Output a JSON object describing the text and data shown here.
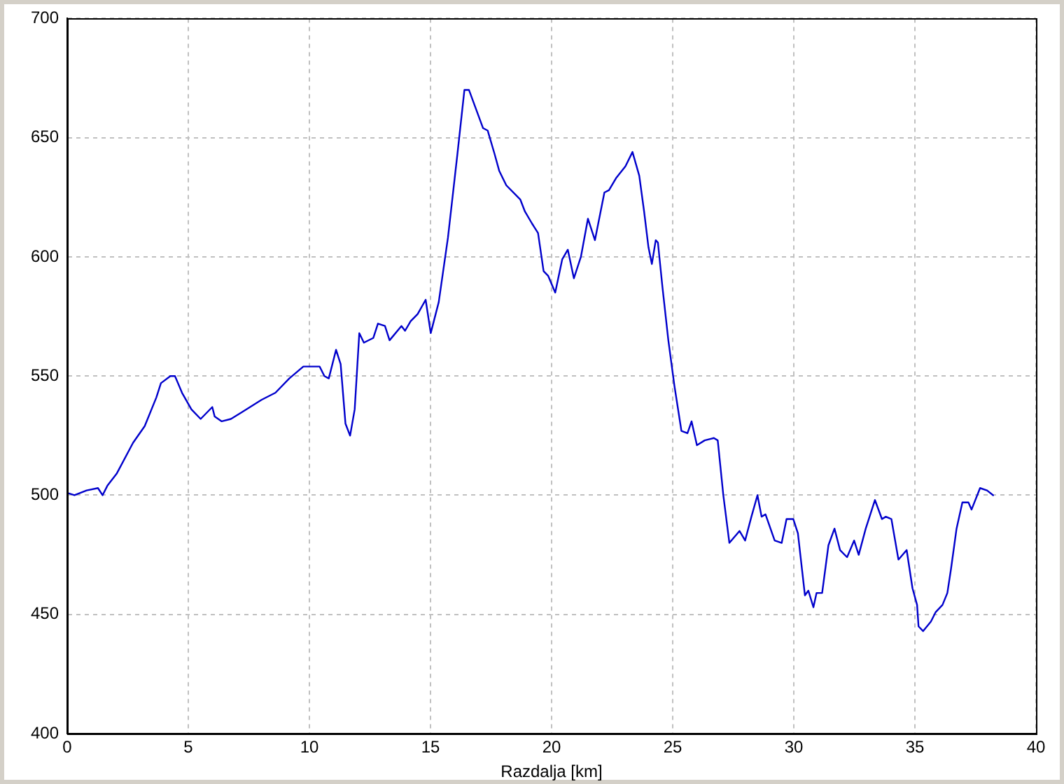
{
  "chart_data": {
    "type": "line",
    "xlabel": "Razdalja [km]",
    "x": [
      0,
      0.3,
      0.8,
      1.27,
      1.46,
      1.66,
      2.04,
      2.72,
      3.2,
      3.68,
      3.87,
      4.26,
      4.45,
      4.74,
      5.13,
      5.51,
      5.99,
      6.09,
      6.38,
      6.76,
      7.24,
      8.02,
      8.6,
      9.17,
      9.75,
      10.42,
      10.62,
      10.8,
      11.1,
      11.29,
      11.49,
      11.68,
      11.87,
      12.06,
      12.25,
      12.64,
      12.83,
      13.12,
      13.31,
      13.8,
      13.95,
      14.18,
      14.47,
      14.8,
      15.01,
      15.34,
      15.72,
      16.11,
      16.4,
      16.59,
      16.88,
      17.17,
      17.36,
      17.65,
      17.84,
      18.13,
      18.71,
      18.9,
      19.19,
      19.44,
      19.67,
      19.86,
      20.15,
      20.44,
      20.67,
      20.92,
      21.21,
      21.5,
      21.79,
      22.18,
      22.37,
      22.66,
      23.05,
      23.34,
      23.62,
      23.82,
      24.0,
      24.14,
      24.3,
      24.39,
      24.58,
      24.82,
      25.07,
      25.36,
      25.61,
      25.78,
      26.0,
      26.32,
      26.7,
      26.86,
      27.09,
      27.34,
      27.76,
      27.99,
      28.25,
      28.5,
      28.67,
      28.83,
      29.21,
      29.5,
      29.7,
      29.98,
      30.17,
      30.46,
      30.6,
      30.81,
      30.94,
      31.17,
      31.43,
      31.68,
      31.91,
      32.2,
      32.49,
      32.68,
      32.97,
      33.35,
      33.64,
      33.8,
      34.03,
      34.32,
      34.66,
      34.9,
      35.09,
      35.15,
      35.34,
      35.66,
      35.86,
      36.14,
      36.34,
      36.49,
      36.72,
      36.96,
      37.21,
      37.34,
      37.69,
      37.98,
      38.23
    ],
    "series": [
      {
        "color": "#0000cc",
        "values": [
          501,
          500,
          502,
          503,
          500,
          504,
          509,
          522,
          529,
          541,
          547,
          550,
          550,
          543,
          536,
          532,
          537,
          533,
          531,
          532,
          535,
          540,
          543,
          549,
          554,
          554,
          550,
          549,
          561,
          555,
          530,
          525,
          536,
          568,
          564,
          566,
          572,
          571,
          565,
          571,
          569,
          573,
          576,
          582,
          568,
          581,
          608,
          643,
          670,
          670,
          662,
          654,
          653,
          643,
          636,
          630,
          624,
          619,
          614,
          610,
          594,
          592,
          585,
          599,
          603,
          591,
          600,
          616,
          607,
          627,
          628,
          633,
          638,
          644,
          634,
          619,
          604,
          597,
          607,
          606,
          587,
          565,
          546,
          527,
          526,
          531,
          521,
          523,
          524,
          523,
          500,
          480,
          485,
          481,
          491,
          500,
          491,
          492,
          481,
          480,
          490,
          490,
          484,
          458,
          460,
          453,
          459,
          459,
          479,
          486,
          477,
          474,
          481,
          475,
          486,
          498,
          490,
          491,
          490,
          473,
          477,
          461,
          454,
          445,
          443,
          447,
          451,
          454,
          459,
          469,
          486,
          497,
          497,
          494,
          503,
          502,
          500
        ]
      }
    ],
    "xlim": [
      0,
      40
    ],
    "ylim": [
      400,
      700
    ],
    "xticks": [
      0,
      5,
      10,
      15,
      20,
      25,
      30,
      35,
      40
    ],
    "yticks": [
      400,
      450,
      500,
      550,
      600,
      650,
      700
    ],
    "grid": true,
    "legend": false,
    "marker": "none",
    "line_style": "solid"
  }
}
